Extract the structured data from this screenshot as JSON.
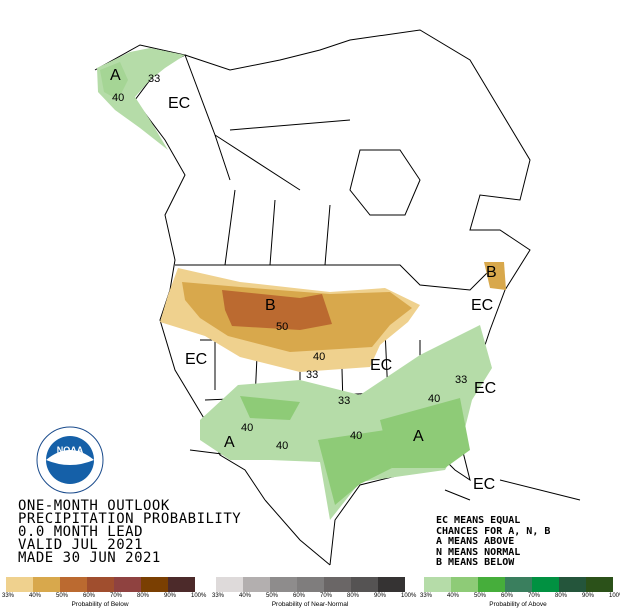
{
  "title_lines": [
    "ONE-MONTH OUTLOOK",
    "PRECIPITATION PROBABILITY",
    "0.0 MONTH LEAD",
    "VALID JUL 2021",
    "MADE 30 JUN 2021"
  ],
  "key_lines": [
    "EC MEANS EQUAL",
    "CHANCES FOR A, N, B",
    "A MEANS ABOVE",
    "N MEANS NORMAL",
    "B MEANS BELOW"
  ],
  "logo": {
    "text": "NOAA",
    "ring_text": "NATIONAL OCEANIC AND ATMOSPHERIC ADMINISTRATION · U.S. DEPARTMENT OF COMMERCE"
  },
  "map_labels": {
    "ak_a": "A",
    "ak_40": "40",
    "ak_33": "33",
    "ak_ec": "EC",
    "b_main": "B",
    "b_50": "50",
    "b_40": "40",
    "b_33": "33",
    "ec_west": "EC",
    "ec_mid": "EC",
    "b_maine": "B",
    "ec_ne": "EC",
    "ec_se": "EC",
    "ec_fl": "EC",
    "a_33": "33",
    "a_40_se": "40",
    "a_33_e": "33",
    "a_40_w": "40",
    "a_40_tx": "40",
    "a_40_c": "40",
    "a_west": "A",
    "a_se": "A"
  },
  "legends": [
    {
      "caption": "Probability of Below",
      "colors": [
        "#efd18e",
        "#d8a84c",
        "#bb6a30",
        "#a04e2e",
        "#8f4240",
        "#7a3f02",
        "#4c2a2a"
      ],
      "ticks": [
        "33%",
        "40%",
        "50%",
        "60%",
        "70%",
        "80%",
        "90%",
        "100%"
      ]
    },
    {
      "caption": "Probability of Near-Normal",
      "colors": [
        "#dedada",
        "#b3afaf",
        "#8e8c8c",
        "#7f7d7d",
        "#6a6666",
        "#555353",
        "#353333"
      ],
      "ticks": [
        "33%",
        "40%",
        "50%",
        "60%",
        "70%",
        "80%",
        "90%",
        "100%"
      ]
    },
    {
      "caption": "Probability of Above",
      "colors": [
        "#b5dca8",
        "#8ecb77",
        "#46ae3b",
        "#3a7f5e",
        "#019141",
        "#24553b",
        "#2b5119"
      ],
      "ticks": [
        "33%",
        "40%",
        "50%",
        "60%",
        "70%",
        "80%",
        "90%",
        "100%"
      ]
    }
  ]
}
